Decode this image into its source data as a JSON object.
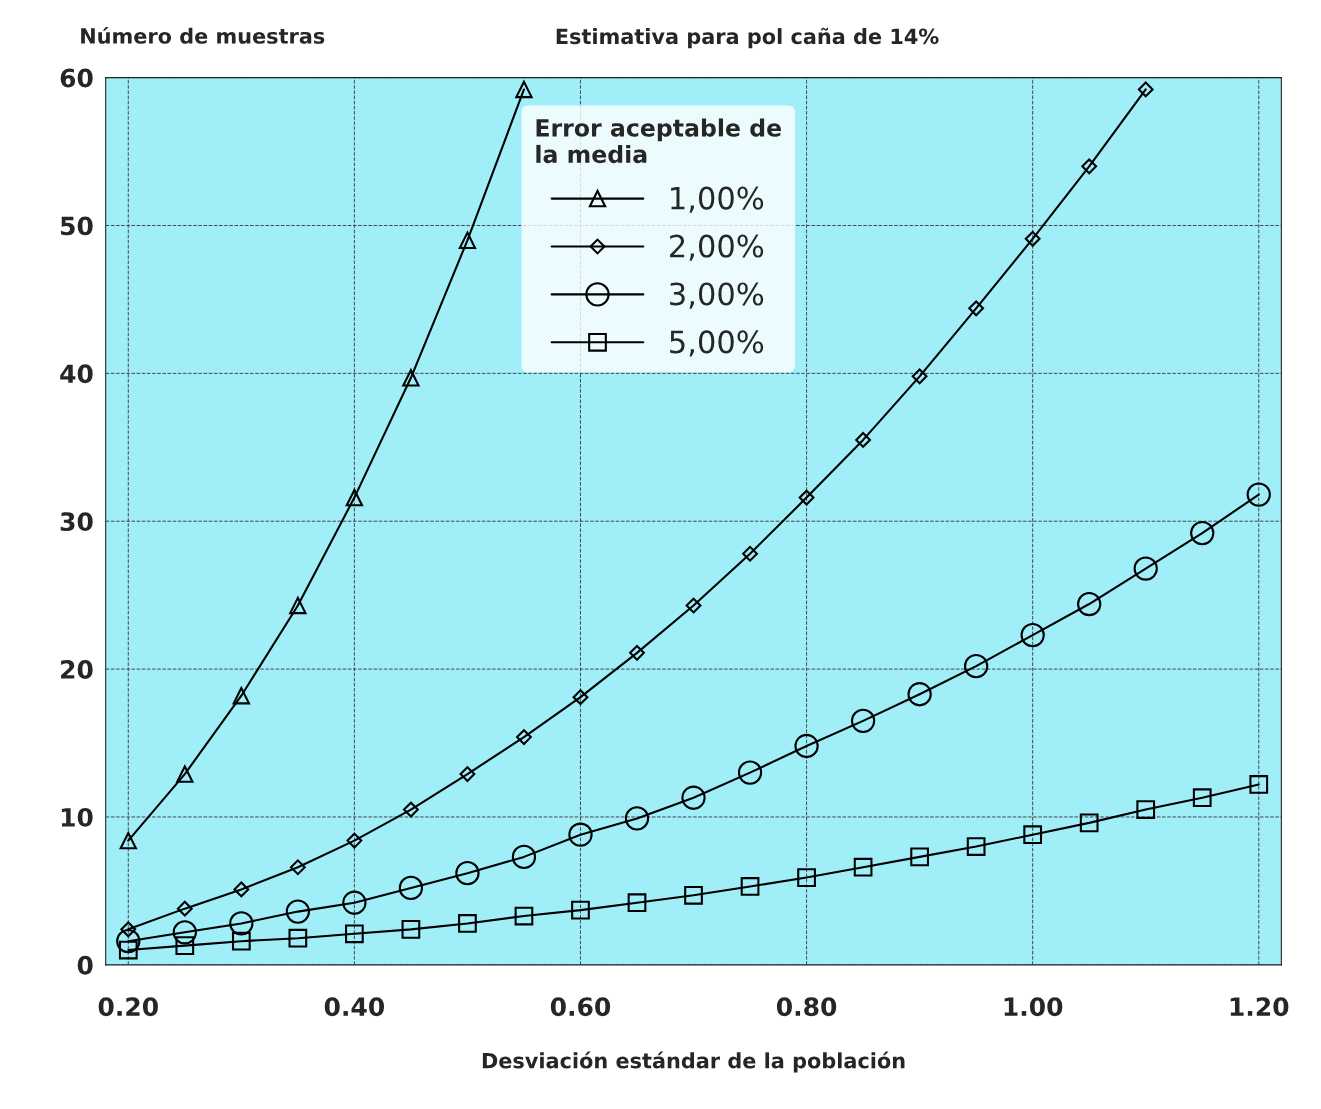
{
  "chart_data": {
    "type": "line",
    "title": "Estimativa para pol caña de 14%",
    "ylabel": "Número de muestras",
    "xlabel": "Desviación estándar de la población",
    "legend_title": "Error aceptable de\nla media",
    "legend": "top",
    "x": [
      0.2,
      0.25,
      0.3,
      0.35,
      0.4,
      0.45,
      0.5,
      0.55,
      0.6,
      0.65,
      0.7,
      0.75,
      0.8,
      0.85,
      0.9,
      0.95,
      1.0,
      1.05,
      1.1,
      1.15,
      1.2
    ],
    "series": [
      {
        "name": "1,00%",
        "color": "#000000",
        "marker": "triangle",
        "values": [
          8.4,
          12.9,
          18.2,
          24.3,
          31.6,
          39.7,
          49.0,
          59.2,
          null,
          null,
          null,
          null,
          null,
          null,
          null,
          null,
          null,
          null,
          null,
          null,
          null
        ]
      },
      {
        "name": "2,00%",
        "color": "#000000",
        "marker": "diamond",
        "values": [
          2.4,
          3.8,
          5.1,
          6.6,
          8.4,
          10.5,
          12.9,
          15.4,
          18.1,
          21.1,
          24.3,
          27.8,
          31.6,
          35.5,
          39.8,
          44.4,
          49.1,
          54.0,
          59.2,
          null,
          null
        ]
      },
      {
        "name": "3,00%",
        "color": "#000000",
        "marker": "circle",
        "values": [
          1.6,
          2.2,
          2.8,
          3.6,
          4.2,
          5.2,
          6.2,
          7.3,
          8.8,
          9.9,
          11.3,
          13.0,
          14.8,
          16.5,
          18.3,
          20.2,
          22.3,
          24.4,
          26.8,
          29.2,
          31.8
        ]
      },
      {
        "name": "5,00%",
        "color": "#000000",
        "marker": "square",
        "values": [
          1.0,
          1.3,
          1.6,
          1.8,
          2.1,
          2.4,
          2.8,
          3.3,
          3.7,
          4.2,
          4.7,
          5.3,
          5.9,
          6.6,
          7.3,
          8.0,
          8.8,
          9.6,
          10.5,
          11.3,
          12.2
        ]
      }
    ],
    "xlim": [
      0.18,
      1.22
    ],
    "ylim": [
      0,
      60
    ],
    "xticks": [
      {
        "value": 0.2,
        "label": "0.20"
      },
      {
        "value": 0.4,
        "label": "0.40"
      },
      {
        "value": 0.6,
        "label": "0.60"
      },
      {
        "value": 0.8,
        "label": "0.80"
      },
      {
        "value": 1.0,
        "label": "1.00"
      },
      {
        "value": 1.2,
        "label": "1.20"
      }
    ],
    "yticks": [
      0,
      10,
      20,
      30,
      40,
      50,
      60
    ],
    "grid": true,
    "line_style": "solid"
  }
}
